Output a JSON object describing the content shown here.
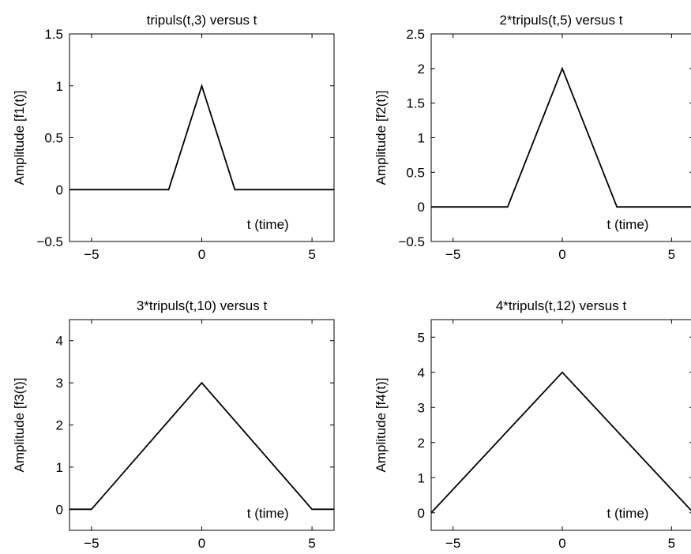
{
  "chart_data": [
    {
      "type": "line",
      "title": "tripuls(t,3) versus t",
      "xlabel": "t (time)",
      "ylabel": "Amplitude [f1(t)]",
      "xlim": [
        -6,
        6
      ],
      "ylim": [
        -0.5,
        1.5
      ],
      "xticks": [
        -5,
        0,
        5
      ],
      "yticks": [
        -0.5,
        0,
        0.5,
        1,
        1.5
      ],
      "xtick_labels": [
        "−5",
        "0",
        "5"
      ],
      "ytick_labels": [
        "−0.5",
        "0",
        "0.5",
        "1",
        "1.5"
      ],
      "series": [
        {
          "color": "#000000",
          "x": [
            -6,
            -1.5,
            0,
            1.5,
            6
          ],
          "y": [
            0,
            0,
            1,
            0,
            0
          ]
        }
      ]
    },
    {
      "type": "line",
      "title": "2*tripuls(t,5) versus t",
      "xlabel": "t (time)",
      "ylabel": "Amplitude [f2(t)]",
      "xlim": [
        -6,
        6
      ],
      "ylim": [
        -0.5,
        2.5
      ],
      "xticks": [
        -5,
        0,
        5
      ],
      "yticks": [
        -0.5,
        0,
        0.5,
        1,
        1.5,
        2,
        2.5
      ],
      "xtick_labels": [
        "−5",
        "0",
        "5"
      ],
      "ytick_labels": [
        "−0.5",
        "0",
        "0.5",
        "1",
        "1.5",
        "2",
        "2.5"
      ],
      "series": [
        {
          "color": "#000000",
          "x": [
            -6,
            -2.5,
            0,
            2.5,
            6
          ],
          "y": [
            0,
            0,
            2,
            0,
            0
          ]
        }
      ]
    },
    {
      "type": "line",
      "title": "3*tripuls(t,10) versus t",
      "xlabel": "t (time)",
      "ylabel": "Amplitude [f3(t)]",
      "xlim": [
        -6,
        6
      ],
      "ylim": [
        -0.5,
        4.5
      ],
      "xticks": [
        -5,
        0,
        5
      ],
      "yticks": [
        0,
        1,
        2,
        3,
        4
      ],
      "xtick_labels": [
        "−5",
        "0",
        "5"
      ],
      "ytick_labels": [
        "0",
        "1",
        "2",
        "3",
        "4"
      ],
      "series": [
        {
          "color": "#000000",
          "x": [
            -6,
            -5,
            0,
            5,
            6
          ],
          "y": [
            0,
            0,
            3,
            0,
            0
          ]
        }
      ]
    },
    {
      "type": "line",
      "title": "4*tripuls(t,12) versus t",
      "xlabel": "t (time)",
      "ylabel": "Amplitude [f4(t)]",
      "xlim": [
        -6,
        6
      ],
      "ylim": [
        -0.5,
        5.5
      ],
      "xticks": [
        -5,
        0,
        5
      ],
      "yticks": [
        0,
        1,
        2,
        3,
        4,
        5
      ],
      "xtick_labels": [
        "−5",
        "0",
        "5"
      ],
      "ytick_labels": [
        "0",
        "1",
        "2",
        "3",
        "4",
        "5"
      ],
      "series": [
        {
          "color": "#000000",
          "x": [
            -6,
            0,
            6
          ],
          "y": [
            0,
            4,
            0
          ]
        }
      ]
    }
  ]
}
